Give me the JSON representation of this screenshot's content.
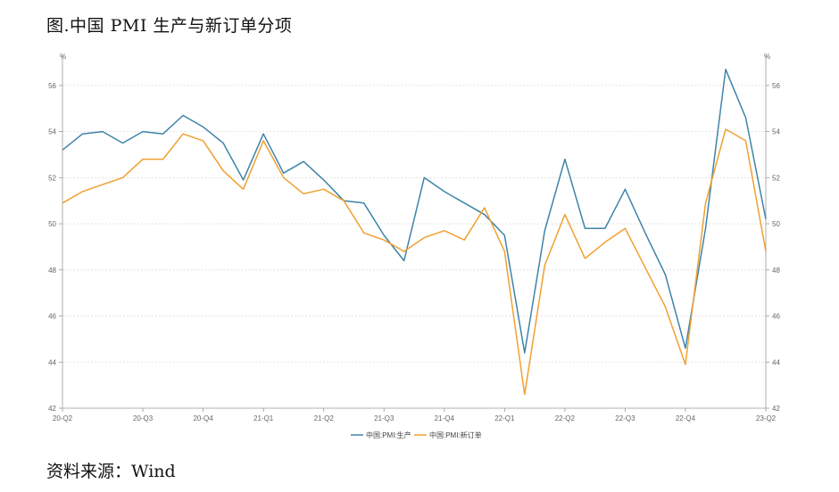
{
  "title": "图.中国 PMI 生产与新订单分项",
  "source": "资料来源：Wind",
  "chart_data": {
    "type": "line",
    "unit_left": "%",
    "unit_right": "%",
    "ylim": [
      42,
      57
    ],
    "yticks": [
      42,
      44,
      46,
      48,
      50,
      52,
      54,
      56
    ],
    "xtick_labels": [
      "20-Q2",
      "20-Q3",
      "20-Q4",
      "21-Q1",
      "21-Q2",
      "21-Q3",
      "21-Q4",
      "22-Q1",
      "22-Q2",
      "22-Q3",
      "22-Q4",
      "23-Q2"
    ],
    "xtick_positions": [
      0,
      4,
      7,
      10,
      13,
      16,
      19,
      22,
      25,
      28,
      31,
      35
    ],
    "series": [
      {
        "name": "中国:PMI:生产",
        "color": "#3d84a8",
        "values": [
          53.2,
          53.9,
          54.0,
          53.5,
          54.0,
          53.9,
          54.7,
          54.2,
          53.5,
          51.9,
          53.9,
          52.2,
          52.7,
          51.9,
          51.0,
          50.9,
          49.5,
          48.4,
          52.0,
          51.4,
          50.9,
          50.4,
          49.5,
          44.4,
          49.7,
          52.8,
          49.8,
          49.8,
          51.5,
          49.6,
          47.8,
          44.6,
          49.8,
          56.7,
          54.6,
          50.2
        ]
      },
      {
        "name": "中国:PMI:新订单",
        "color": "#f0a030",
        "values": [
          50.9,
          51.4,
          51.7,
          52.0,
          52.8,
          52.8,
          53.9,
          53.6,
          52.3,
          51.5,
          53.6,
          52.0,
          51.3,
          51.5,
          51.0,
          49.6,
          49.3,
          48.8,
          49.4,
          49.7,
          49.3,
          50.7,
          48.8,
          42.6,
          48.2,
          50.4,
          48.5,
          49.2,
          49.8,
          48.1,
          46.4,
          43.9,
          50.9,
          54.1,
          53.6,
          48.8
        ]
      }
    ]
  }
}
